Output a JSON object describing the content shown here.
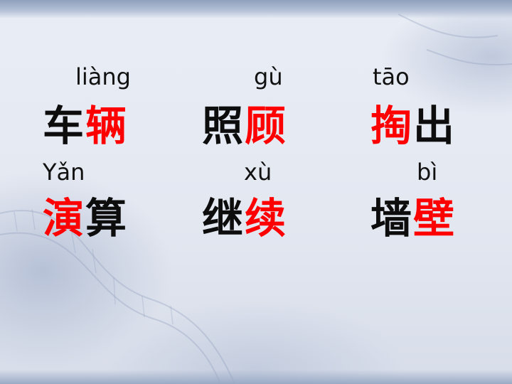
{
  "slide": {
    "rows": [
      {
        "items": [
          {
            "pinyin": "liàng",
            "chars": [
              {
                "text": "车",
                "highlight": false
              },
              {
                "text": "辆",
                "highlight": true
              }
            ]
          },
          {
            "pinyin": "gù",
            "chars": [
              {
                "text": "照",
                "highlight": false
              },
              {
                "text": "顾",
                "highlight": true
              }
            ]
          },
          {
            "pinyin": "tāo",
            "chars": [
              {
                "text": "掏",
                "highlight": true
              },
              {
                "text": "出",
                "highlight": false
              }
            ]
          }
        ]
      },
      {
        "items": [
          {
            "pinyin": "Yǎn",
            "chars": [
              {
                "text": "演",
                "highlight": true
              },
              {
                "text": "算",
                "highlight": false
              }
            ]
          },
          {
            "pinyin": "xù",
            "chars": [
              {
                "text": "继",
                "highlight": false
              },
              {
                "text": "续",
                "highlight": true
              }
            ]
          },
          {
            "pinyin": "bì",
            "chars": [
              {
                "text": "墙",
                "highlight": false
              },
              {
                "text": "壁",
                "highlight": true
              }
            ]
          }
        ]
      }
    ],
    "colors": {
      "text": "#0d0d0d",
      "highlight": "#ff0000",
      "background": "#e4e8f1"
    }
  }
}
